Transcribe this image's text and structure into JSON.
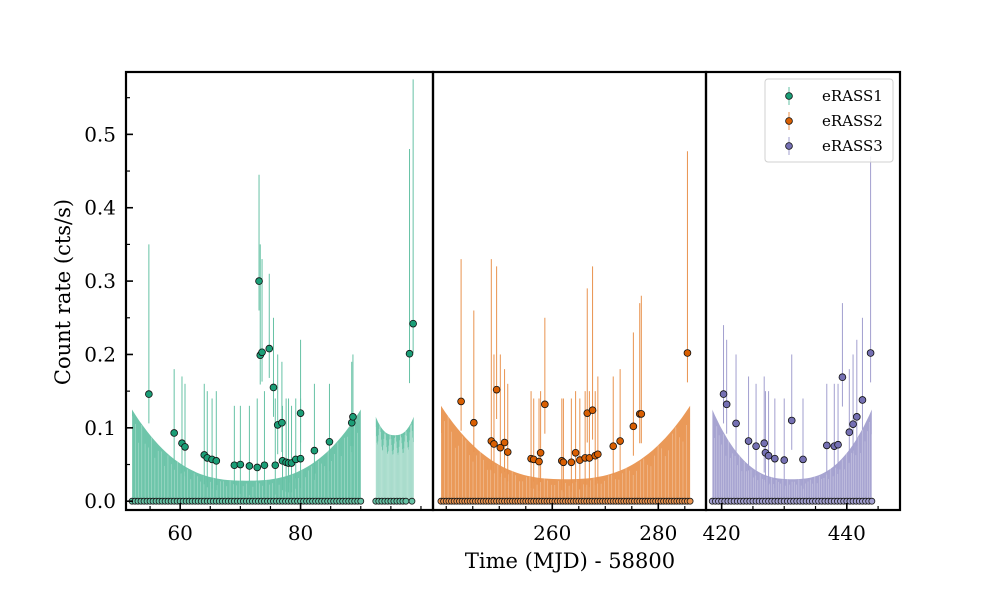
{
  "chart_data": {
    "type": "scatter",
    "title": "",
    "xlabel": "Time (MJD) - 58800",
    "ylabel": "Count rate (cts/s)",
    "ylim": [
      -0.012,
      0.585
    ],
    "y_ticks": [
      0.0,
      0.1,
      0.2,
      0.3,
      0.4,
      0.5
    ],
    "y_tick_labels": [
      "0.0",
      "0.1",
      "0.2",
      "0.3",
      "0.4",
      "0.5"
    ],
    "legend": {
      "position": "top-right"
    },
    "panels": [
      {
        "name": "eRASS1",
        "color": "#1b9e77",
        "fill": "#66c2a5",
        "xlim": [
          51,
          102
        ],
        "x_ticks": [
          60,
          80
        ],
        "x_tick_labels": [
          "60",
          "80"
        ],
        "points": [
          [
            54.8,
            0.146,
            0.35
          ],
          [
            59.0,
            0.093,
            0.18
          ],
          [
            60.3,
            0.079,
            0.17
          ],
          [
            60.8,
            0.074,
            0.16
          ],
          [
            64.0,
            0.063,
            0.16
          ],
          [
            64.5,
            0.059,
            0.15
          ],
          [
            65.3,
            0.057,
            0.14
          ],
          [
            66.0,
            0.055,
            0.15
          ],
          [
            69.0,
            0.049,
            0.13
          ],
          [
            70.0,
            0.05,
            0.13
          ],
          [
            71.5,
            0.048,
            0.13
          ],
          [
            72.8,
            0.046,
            0.14
          ],
          [
            73.1,
            0.3,
            0.445
          ],
          [
            73.3,
            0.199,
            0.35
          ],
          [
            73.6,
            0.203,
            0.33
          ],
          [
            74.0,
            0.049,
            0.15
          ],
          [
            74.8,
            0.208,
            0.31
          ],
          [
            75.5,
            0.155,
            0.25
          ],
          [
            75.8,
            0.049,
            0.14
          ],
          [
            76.2,
            0.104,
            0.2
          ],
          [
            76.9,
            0.107,
            0.19
          ],
          [
            77.0,
            0.055,
            0.13
          ],
          [
            77.6,
            0.053,
            0.14
          ],
          [
            78.0,
            0.052,
            0.14
          ],
          [
            78.5,
            0.052,
            0.13
          ],
          [
            79.2,
            0.057,
            0.14
          ],
          [
            80.0,
            0.058,
            0.14
          ],
          [
            80.0,
            0.12,
            0.22
          ],
          [
            82.3,
            0.069,
            0.16
          ],
          [
            84.8,
            0.081,
            0.16
          ],
          [
            88.5,
            0.107,
            0.19
          ],
          [
            88.7,
            0.115,
            0.2
          ],
          [
            98.1,
            0.201,
            0.48
          ],
          [
            98.7,
            0.242,
            0.575
          ]
        ],
        "upper_limit_x": [
          52,
          52.5,
          53,
          53.5,
          54,
          54.5,
          55,
          55.5,
          56,
          56.5,
          57,
          57.5,
          58,
          58.5,
          59,
          59.5,
          60,
          60.5,
          61,
          61.5,
          62,
          62.5,
          63,
          63.5,
          64,
          64.5,
          65,
          65.5,
          66,
          66.5,
          67,
          67.5,
          68,
          68.5,
          69,
          69.5,
          70,
          70.5,
          71,
          71.5,
          72,
          72.5,
          73,
          73.5,
          74,
          74.5,
          75,
          75.5,
          76,
          76.5,
          77,
          77.5,
          78,
          78.5,
          79,
          79.5,
          80,
          80.5,
          81,
          81.5,
          82,
          82.5,
          83,
          83.5,
          84,
          84.5,
          85,
          85.5,
          86,
          86.5,
          87,
          87.5,
          88,
          88.5,
          89,
          89.5,
          90,
          92.5,
          93,
          93.5,
          94,
          94.5,
          95,
          95.5,
          96,
          96.5,
          97,
          97.5,
          98.5
        ],
        "bands": [
          {
            "from": 52,
            "to": 90,
            "upper_edge": 0.125,
            "upper_mid": 0.028
          },
          {
            "from": 92.5,
            "to": 98.8,
            "upper_edge": 0.115,
            "upper_mid": 0.09
          }
        ]
      },
      {
        "name": "eRASS2",
        "color": "#d95f02",
        "fill": "#e9934f",
        "xlim": [
          237.5,
          289
        ],
        "x_ticks": [
          260,
          280
        ],
        "x_tick_labels": [
          "260",
          "280"
        ],
        "points": [
          [
            242.8,
            0.136,
            0.33
          ],
          [
            245.2,
            0.107,
            0.26
          ],
          [
            248.5,
            0.082,
            0.33
          ],
          [
            249.0,
            0.078,
            0.2
          ],
          [
            249.5,
            0.152,
            0.32
          ],
          [
            250.2,
            0.073,
            0.2
          ],
          [
            251.0,
            0.08,
            0.18
          ],
          [
            251.6,
            0.067,
            0.16
          ],
          [
            256.0,
            0.058,
            0.15
          ],
          [
            256.5,
            0.057,
            0.14
          ],
          [
            257.5,
            0.054,
            0.14
          ],
          [
            257.8,
            0.066,
            0.15
          ],
          [
            258.6,
            0.132,
            0.25
          ],
          [
            261.8,
            0.055,
            0.14
          ],
          [
            262.1,
            0.053,
            0.14
          ],
          [
            263.6,
            0.053,
            0.14
          ],
          [
            264.4,
            0.066,
            0.15
          ],
          [
            265.2,
            0.056,
            0.14
          ],
          [
            266.2,
            0.059,
            0.15
          ],
          [
            266.6,
            0.12,
            0.29
          ],
          [
            267.0,
            0.059,
            0.15
          ],
          [
            267.6,
            0.124,
            0.32
          ],
          [
            268.1,
            0.062,
            0.15
          ],
          [
            268.6,
            0.064,
            0.17
          ],
          [
            271.5,
            0.075,
            0.17
          ],
          [
            272.8,
            0.082,
            0.18
          ],
          [
            275.3,
            0.102,
            0.23
          ],
          [
            276.5,
            0.119,
            0.27
          ],
          [
            276.8,
            0.119,
            0.28
          ],
          [
            285.5,
            0.202,
            0.477
          ]
        ],
        "upper_limit_x": [
          239,
          239.5,
          240,
          240.5,
          241,
          241.5,
          242,
          242.5,
          243,
          243.5,
          244,
          244.5,
          245,
          245.5,
          246,
          246.5,
          247,
          247.5,
          248,
          248.5,
          249,
          249.5,
          250,
          250.5,
          251,
          251.5,
          252,
          252.5,
          253,
          253.5,
          254,
          254.5,
          255,
          255.5,
          256,
          256.5,
          257,
          257.5,
          258,
          258.5,
          259,
          259.5,
          260,
          260.5,
          261,
          261.5,
          262,
          262.5,
          263,
          263.5,
          264,
          264.5,
          265,
          265.5,
          266,
          266.5,
          267,
          267.5,
          268,
          268.5,
          269,
          269.5,
          270,
          270.5,
          271,
          271.5,
          272,
          272.5,
          273,
          273.5,
          274,
          274.5,
          275,
          275.5,
          276,
          276.5,
          277,
          277.5,
          278,
          278.5,
          279,
          279.5,
          280,
          280.5,
          281,
          281.5,
          282,
          282.5,
          283,
          283.5,
          284,
          284.5,
          285,
          285.5,
          286
        ],
        "bands": [
          {
            "from": 239,
            "to": 286,
            "upper_edge": 0.13,
            "upper_mid": 0.03
          }
        ]
      },
      {
        "name": "eRASS3",
        "color": "#7570b3",
        "fill": "#a29fcf",
        "xlim": [
          417.5,
          448.5
        ],
        "x_ticks": [
          420,
          440
        ],
        "x_tick_labels": [
          "420",
          "440"
        ],
        "points": [
          [
            420.3,
            0.146,
            0.24
          ],
          [
            420.8,
            0.132,
            0.22
          ],
          [
            422.3,
            0.106,
            0.2
          ],
          [
            424.3,
            0.082,
            0.17
          ],
          [
            425.5,
            0.075,
            0.16
          ],
          [
            426.8,
            0.079,
            0.17
          ],
          [
            427.0,
            0.066,
            0.15
          ],
          [
            427.5,
            0.062,
            0.15
          ],
          [
            428.5,
            0.058,
            0.14
          ],
          [
            430.0,
            0.056,
            0.14
          ],
          [
            431.2,
            0.11,
            0.2
          ],
          [
            433.0,
            0.057,
            0.14
          ],
          [
            436.8,
            0.076,
            0.16
          ],
          [
            438.0,
            0.075,
            0.16
          ],
          [
            438.6,
            0.077,
            0.16
          ],
          [
            439.3,
            0.169,
            0.27
          ],
          [
            440.4,
            0.094,
            0.18
          ],
          [
            441.0,
            0.105,
            0.2
          ],
          [
            441.6,
            0.115,
            0.22
          ],
          [
            442.5,
            0.138,
            0.25
          ],
          [
            443.8,
            0.202,
            0.47
          ]
        ],
        "upper_limit_x": [
          418.5,
          419,
          419.5,
          420,
          420.5,
          421,
          421.5,
          422,
          422.5,
          423,
          423.5,
          424,
          424.5,
          425,
          425.5,
          426,
          426.5,
          427,
          427.5,
          428,
          428.5,
          429,
          429.5,
          430,
          430.5,
          431,
          431.5,
          432,
          432.5,
          433,
          433.5,
          434,
          434.5,
          435,
          435.5,
          436,
          436.5,
          437,
          437.5,
          438,
          438.5,
          439,
          439.5,
          440,
          440.5,
          441,
          441.5,
          442,
          442.5,
          443,
          443.5,
          444
        ],
        "bands": [
          {
            "from": 418.5,
            "to": 444,
            "upper_edge": 0.125,
            "upper_mid": 0.03
          }
        ]
      }
    ]
  }
}
